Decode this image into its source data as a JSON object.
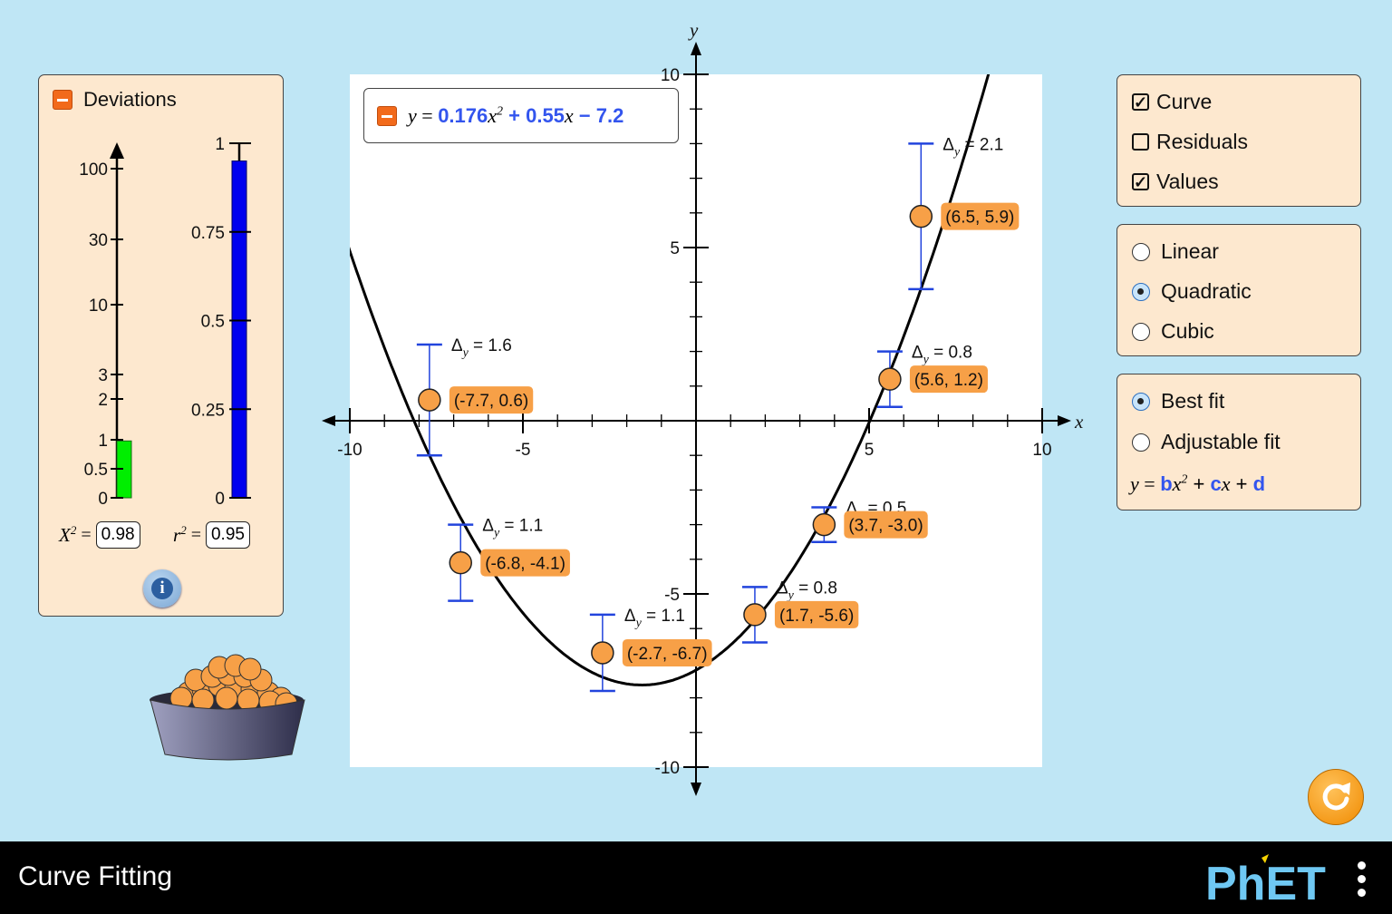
{
  "deviations": {
    "title": "Deviations",
    "chi_ticks": [
      "100",
      "30",
      "10",
      "3",
      "2",
      "1",
      "0.5",
      "0"
    ],
    "r_ticks": [
      "1",
      "0.75",
      "0.5",
      "0.25",
      "0"
    ],
    "chi_value": "0.98",
    "r2_value": "0.95",
    "chi_label": "X",
    "r_label": "r",
    "sq": "2",
    "eq": "=",
    "chi_level": 0.98,
    "r2_level": 0.95,
    "chi_color": "#00ee00",
    "r2_color": "#0000ee"
  },
  "equation": {
    "y": "y",
    "eq": " = ",
    "b": "0.176",
    "x": "x",
    "sq": "2",
    "op1": " + ",
    "c": "0.55",
    "op2": " − ",
    "d": "7.2",
    "coef_color": "#3355ee"
  },
  "display_options": {
    "curve": {
      "label": "Curve",
      "checked": true
    },
    "residuals": {
      "label": "Residuals",
      "checked": false
    },
    "values": {
      "label": "Values",
      "checked": true
    }
  },
  "fit_type": {
    "options": [
      "Linear",
      "Quadratic",
      "Cubic"
    ],
    "selected": "Quadratic"
  },
  "fit_mode": {
    "options": [
      "Best fit",
      "Adjustable fit"
    ],
    "selected": "Best fit",
    "formula": {
      "y": "y",
      "eq": " = ",
      "b": "b",
      "x": "x",
      "sq": "2",
      "plus1": " + ",
      "c": "c",
      "plus2": " + ",
      "d": "d"
    }
  },
  "chart_data": {
    "type": "scatter",
    "xlabel": "x",
    "ylabel": "y",
    "xlim": [
      -10,
      10
    ],
    "ylim": [
      -10,
      10
    ],
    "x_ticks": [
      "-10",
      "-5",
      "5",
      "10"
    ],
    "y_ticks": [
      "10",
      "5",
      "-5",
      "-10"
    ],
    "curve": {
      "b": 0.176,
      "c": 0.55,
      "d": -7.2
    },
    "points": [
      {
        "x": -7.7,
        "y": 0.6,
        "dy": 1.6,
        "label": "(-7.7, 0.6)",
        "dlabel": "= 1.6"
      },
      {
        "x": -6.8,
        "y": -4.1,
        "dy": 1.1,
        "label": "(-6.8, -4.1)",
        "dlabel": "= 1.1"
      },
      {
        "x": -2.7,
        "y": -6.7,
        "dy": 1.1,
        "label": "(-2.7, -6.7)",
        "dlabel": "= 1.1"
      },
      {
        "x": 1.7,
        "y": -5.6,
        "dy": 0.8,
        "label": "(1.7, -5.6)",
        "dlabel": "= 0.8"
      },
      {
        "x": 3.7,
        "y": -3.0,
        "dy": 0.5,
        "label": "(3.7, -3.0)",
        "dlabel": "= 0.5"
      },
      {
        "x": 5.6,
        "y": 1.2,
        "dy": 0.8,
        "label": "(5.6, 1.2)",
        "dlabel": "= 0.8"
      },
      {
        "x": 6.5,
        "y": 5.9,
        "dy": 2.1,
        "label": "(6.5, 5.9)",
        "dlabel": "= 2.1"
      }
    ],
    "delta_symbol": "Δ",
    "delta_sub": "y",
    "point_color": "#f7a047",
    "error_color": "#2244dd"
  },
  "footer": {
    "app_title": "Curve Fitting",
    "logo": "PhET"
  }
}
